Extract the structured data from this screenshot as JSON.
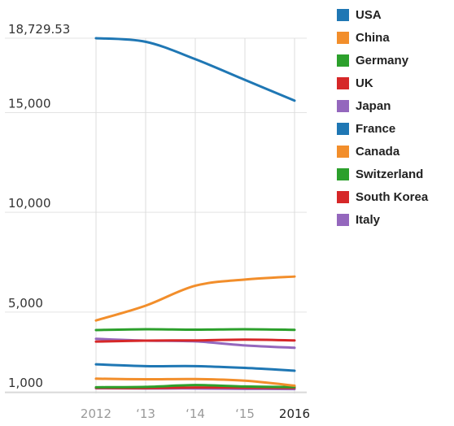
{
  "chart_data": {
    "type": "line",
    "title": "",
    "xlabel": "",
    "ylabel": "",
    "x": [
      2012,
      2013,
      2014,
      2015,
      2016
    ],
    "x_tick_labels": [
      "2012",
      "‘13",
      "‘14",
      "‘15",
      "2016"
    ],
    "y_tick_values": [
      1000,
      5000,
      10000,
      15000,
      18729.53
    ],
    "y_tick_labels": [
      "1,000",
      "5,000",
      "10,000",
      "15,000",
      "18,729.53"
    ],
    "ylim": [
      1000,
      18729.53
    ],
    "grid": "vertical",
    "legend_position": "right",
    "series": [
      {
        "name": "USA",
        "color": "#1f77b4",
        "values": [
          18729.53,
          18550,
          17680,
          16640,
          15600
        ]
      },
      {
        "name": "China",
        "color": "#f28e2b",
        "values": [
          4580,
          5320,
          6320,
          6630,
          6780
        ]
      },
      {
        "name": "Germany",
        "color": "#2ca02c",
        "values": [
          4100,
          4140,
          4120,
          4140,
          4110
        ]
      },
      {
        "name": "UK",
        "color": "#d62728",
        "values": [
          3520,
          3570,
          3580,
          3620,
          3580
        ]
      },
      {
        "name": "Japan",
        "color": "#9467bd",
        "values": [
          3660,
          3570,
          3530,
          3330,
          3210
        ]
      },
      {
        "name": "France",
        "color": "#1f77b4",
        "values": [
          2380,
          2290,
          2290,
          2200,
          2060
        ]
      },
      {
        "name": "Canada",
        "color": "#f28e2b",
        "values": [
          1660,
          1630,
          1640,
          1560,
          1310
        ]
      },
      {
        "name": "Switzerland",
        "color": "#2ca02c",
        "values": [
          1230,
          1250,
          1340,
          1270,
          1240
        ]
      },
      {
        "name": "South Korea",
        "color": "#d62728",
        "values": [
          1200,
          1190,
          1220,
          1210,
          1200
        ]
      },
      {
        "name": "Italy",
        "color": "#9467bd",
        "values": [
          1180,
          1170,
          1170,
          1150,
          1140
        ]
      }
    ]
  }
}
